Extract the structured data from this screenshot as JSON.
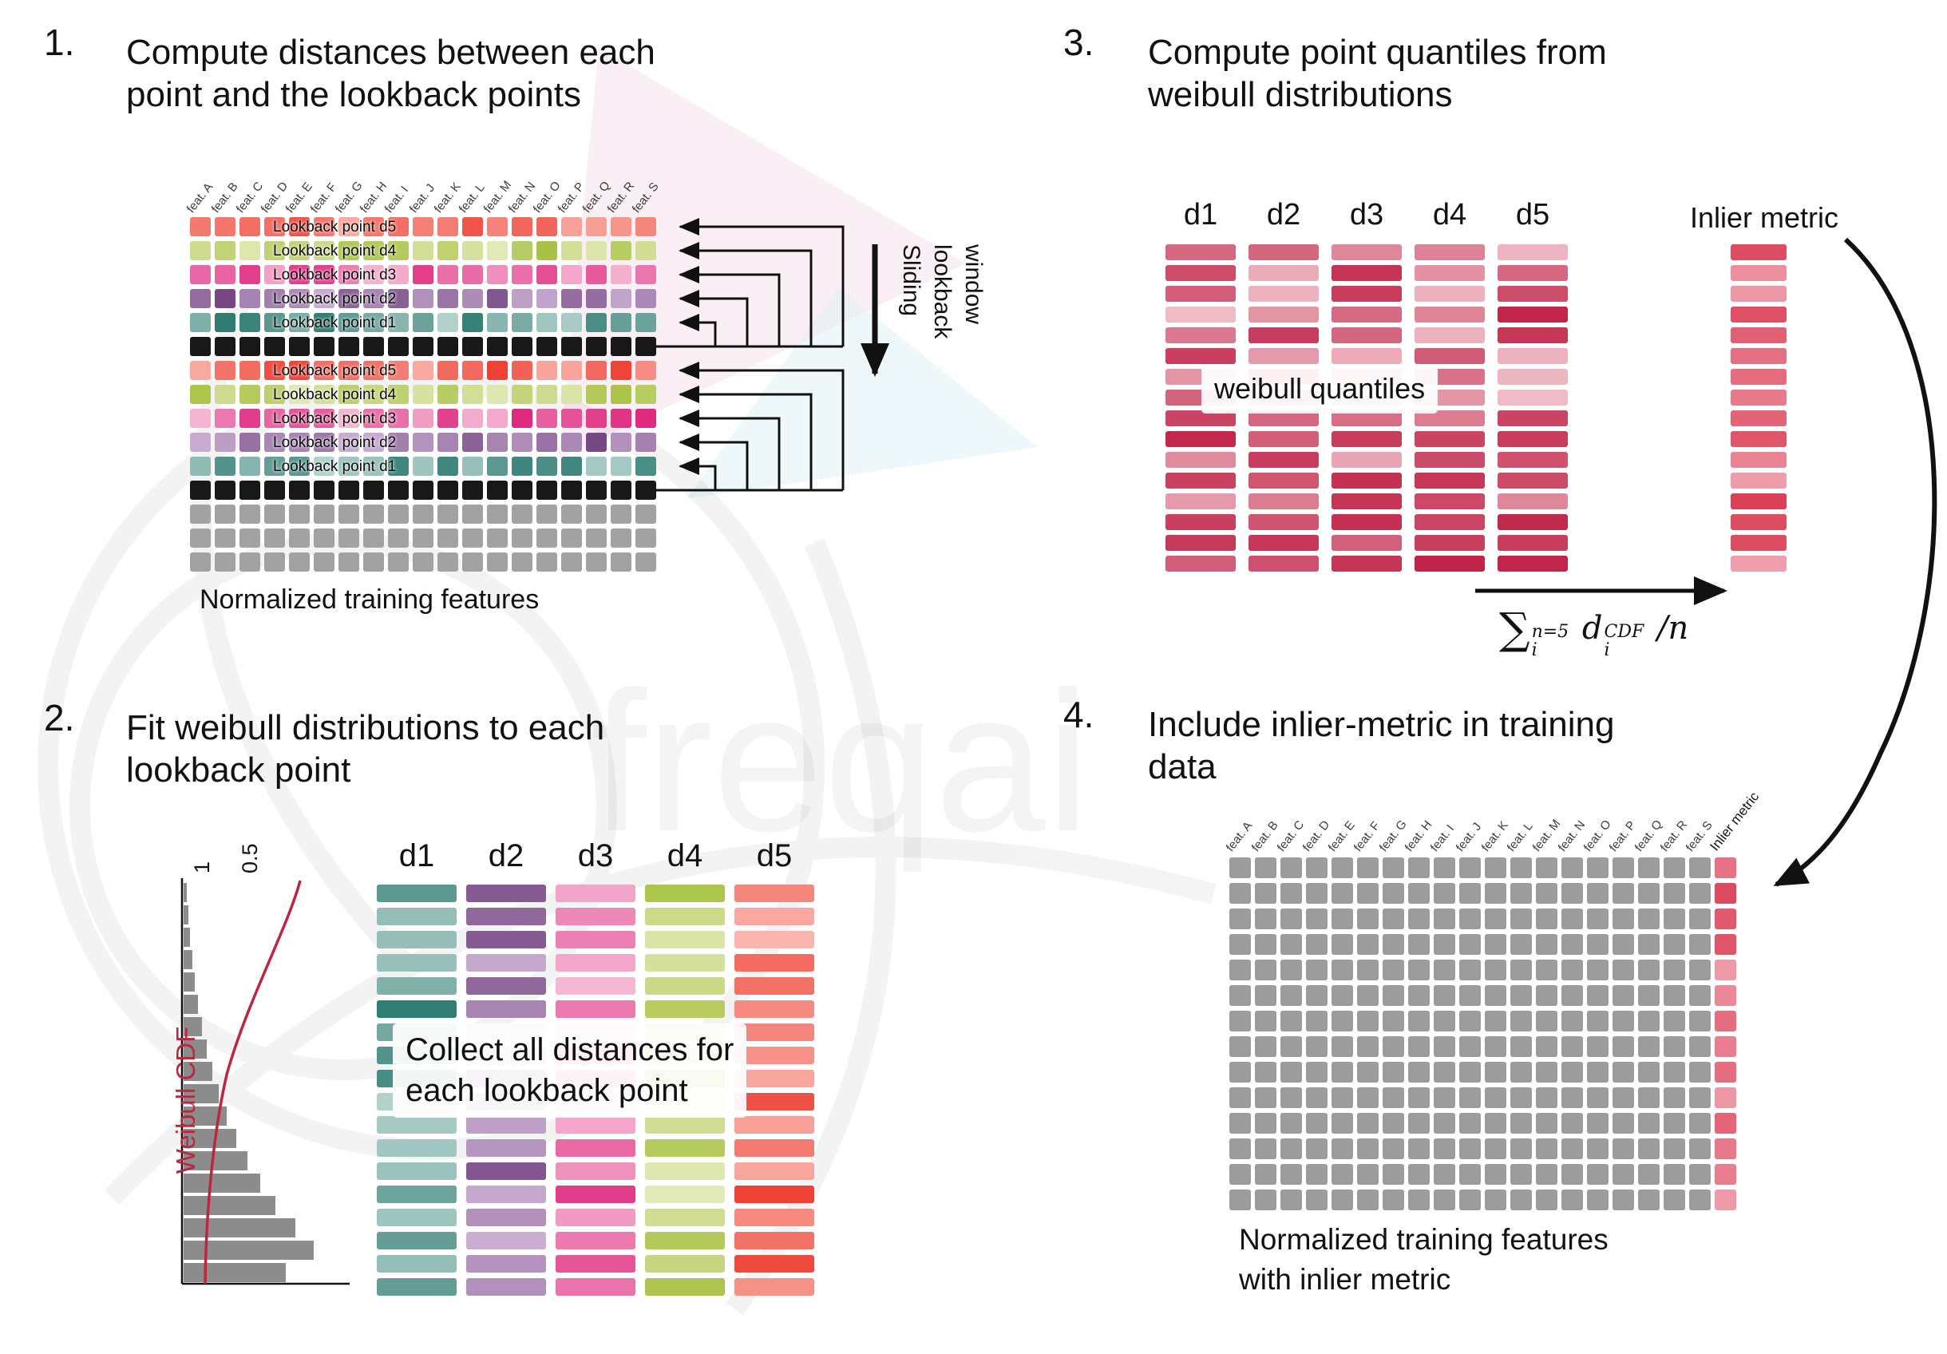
{
  "colors": {
    "d1": {
      "light": "#c3dcd7",
      "dark": "#1f7168"
    },
    "d2": {
      "light": "#d6bede",
      "dark": "#6f3f7d"
    },
    "d3": {
      "light": "#f8c5dc",
      "dark": "#dd2079"
    },
    "d4": {
      "light": "#ecf0cb",
      "dark": "#a4bf3b"
    },
    "d5": {
      "light": "#fbc1ba",
      "dark": "#ee3a2e"
    },
    "quant": {
      "light": "#f4ccd4",
      "dark": "#bf2045"
    },
    "inlier": {
      "light": "#f2aab6",
      "dark": "#d8384f"
    },
    "black": "#181818",
    "gray": "#a2a2a2",
    "gray_p4": "#9c9c9c",
    "cdf_red": "#bb2740",
    "hist_gray": "#8c8c8c",
    "arrow": "#111111"
  },
  "panel1": {
    "number": "1.",
    "title": "Compute distances between each\npoint and the lookback points",
    "caption": "Normalized training features",
    "headers": [
      "feat. A",
      "feat. B",
      "feat. C",
      "feat. D",
      "feat. E",
      "feat. F",
      "feat. G",
      "feat. H",
      "feat. I",
      "feat. J",
      "feat. K",
      "feat. L",
      "feat. M",
      "feat. N",
      "feat. O",
      "feat. P",
      "feat. Q",
      "feat. R",
      "feat. S"
    ],
    "rows": [
      {
        "c": "d5",
        "label": "Lookback point d5"
      },
      {
        "c": "d4",
        "label": "Lookback point d4"
      },
      {
        "c": "d3",
        "label": "Lookback point d3"
      },
      {
        "c": "d2",
        "label": "Lookback point d2"
      },
      {
        "c": "d1",
        "label": "Lookback point d1"
      },
      {
        "c": "black"
      },
      {
        "c": "d5",
        "label": "Lookback point d5"
      },
      {
        "c": "d4",
        "label": "Lookback point d4"
      },
      {
        "c": "d3",
        "label": "Lookback point d3"
      },
      {
        "c": "d2",
        "label": "Lookback point d2"
      },
      {
        "c": "d1",
        "label": "Lookback point d1"
      },
      {
        "c": "black"
      },
      {
        "c": "gray"
      },
      {
        "c": "gray"
      },
      {
        "c": "gray"
      }
    ],
    "sliding_1": "Sliding",
    "sliding_2": "lookback",
    "sliding_3": "window"
  },
  "panel2": {
    "number": "2.",
    "title": "Fit weibull distributions to each\nlookback point",
    "overlay": "Collect all distances for\neach lookback point",
    "columns": [
      {
        "label": "d1",
        "c": "d1"
      },
      {
        "label": "d2",
        "c": "d2"
      },
      {
        "label": "d3",
        "c": "d3"
      },
      {
        "label": "d4",
        "c": "d4"
      },
      {
        "label": "d5",
        "c": "d5"
      }
    ],
    "bars_per_column": 18,
    "plot": {
      "ylabel": "Weibull CDF",
      "tick1": "1",
      "tick2": "0.5",
      "hist": [
        4,
        6,
        8,
        11,
        14,
        18,
        23,
        29,
        36,
        44,
        54,
        66,
        80,
        96,
        115,
        140,
        163,
        128
      ]
    }
  },
  "panel3": {
    "number": "3.",
    "title": "Compute point quantiles from\nweibull distributions",
    "overlay": "weibull quantiles",
    "inlier_label": "Inlier metric",
    "columns": [
      {
        "label": "d1",
        "c": "quant"
      },
      {
        "label": "d2",
        "c": "quant"
      },
      {
        "label": "d3",
        "c": "quant"
      },
      {
        "label": "d4",
        "c": "quant"
      },
      {
        "label": "d5",
        "c": "quant"
      }
    ],
    "bars_per_column": 16,
    "inlier_bars": 16,
    "formula": {
      "sum": "∑",
      "sum_sup": "n=5",
      "sum_sub": "i",
      "var": "d",
      "var_sup": "CDF",
      "var_sub": "i",
      "tail": "/n"
    }
  },
  "panel4": {
    "number": "4.",
    "title": "Include inlier-metric in training\ndata",
    "caption": "Normalized training features\nwith inlier metric",
    "headers": [
      "feat. A",
      "feat. B",
      "feat. C",
      "feat. D",
      "feat. E",
      "feat. F",
      "feat. G",
      "feat. H",
      "feat. I",
      "feat. J",
      "feat. K",
      "feat. L",
      "feat. M",
      "feat. N",
      "feat. O",
      "feat. P",
      "feat. Q",
      "feat. R",
      "feat. S",
      "Inlier metric"
    ],
    "rows": 14
  }
}
